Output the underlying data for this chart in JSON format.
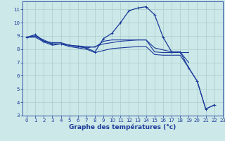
{
  "bg_color": "#cce8e8",
  "grid_color": "#aacccc",
  "line_color": "#1a3a9a",
  "xlabel": "Graphe des températures (°c)",
  "xlabel_fontsize": 6.5,
  "xlim": [
    -0.5,
    23
  ],
  "ylim": [
    3,
    11.6
  ],
  "xticks": [
    0,
    1,
    2,
    3,
    4,
    5,
    6,
    7,
    8,
    9,
    10,
    11,
    12,
    13,
    14,
    15,
    16,
    17,
    18,
    19,
    20,
    21,
    22,
    23
  ],
  "yticks": [
    3,
    4,
    5,
    6,
    7,
    8,
    9,
    10,
    11
  ],
  "tick_fontsize": 5.0,
  "series": [
    {
      "x": [
        0,
        1,
        2,
        3,
        4,
        5,
        6,
        7,
        8,
        9,
        10,
        11,
        12,
        13,
        14,
        15,
        16,
        17,
        18,
        19,
        20,
        21,
        22
      ],
      "y": [
        8.9,
        9.1,
        8.6,
        8.4,
        8.4,
        8.3,
        8.2,
        8.1,
        7.8,
        8.8,
        9.2,
        10.0,
        10.9,
        11.1,
        11.2,
        10.6,
        8.9,
        7.8,
        7.8,
        6.6,
        5.6,
        3.5,
        3.8
      ],
      "marker": "+",
      "markersize": 3.5,
      "linewidth": 0.9
    },
    {
      "x": [
        0,
        1,
        2,
        3,
        4,
        5,
        6,
        7,
        8,
        9,
        10,
        11,
        12,
        13,
        14,
        15,
        16,
        17,
        18,
        19
      ],
      "y": [
        8.9,
        9.0,
        8.7,
        8.4,
        8.4,
        8.3,
        8.25,
        8.2,
        8.15,
        8.6,
        8.7,
        8.7,
        8.7,
        8.7,
        8.7,
        7.8,
        7.75,
        7.75,
        7.75,
        7.75
      ],
      "marker": null,
      "markersize": 0,
      "linewidth": 0.8
    },
    {
      "x": [
        0,
        1,
        2,
        3,
        4,
        5,
        6,
        7,
        8,
        9,
        10,
        11,
        12,
        13,
        14,
        15,
        16,
        17,
        18,
        19
      ],
      "y": [
        8.9,
        9.0,
        8.6,
        8.5,
        8.5,
        8.3,
        8.2,
        8.1,
        8.2,
        8.4,
        8.5,
        8.6,
        8.65,
        8.7,
        8.7,
        8.1,
        7.95,
        7.8,
        7.8,
        7.0
      ],
      "marker": null,
      "markersize": 0,
      "linewidth": 0.8
    },
    {
      "x": [
        0,
        1,
        2,
        3,
        4,
        5,
        6,
        7,
        8,
        9,
        10,
        11,
        12,
        13,
        14,
        15,
        16,
        17,
        18,
        19,
        20,
        21,
        22
      ],
      "y": [
        8.9,
        8.9,
        8.55,
        8.3,
        8.4,
        8.2,
        8.1,
        8.0,
        7.75,
        7.9,
        8.05,
        8.1,
        8.15,
        8.2,
        8.2,
        7.6,
        7.55,
        7.55,
        7.55,
        6.6,
        5.6,
        3.5,
        3.8
      ],
      "marker": null,
      "markersize": 0,
      "linewidth": 0.8
    }
  ]
}
